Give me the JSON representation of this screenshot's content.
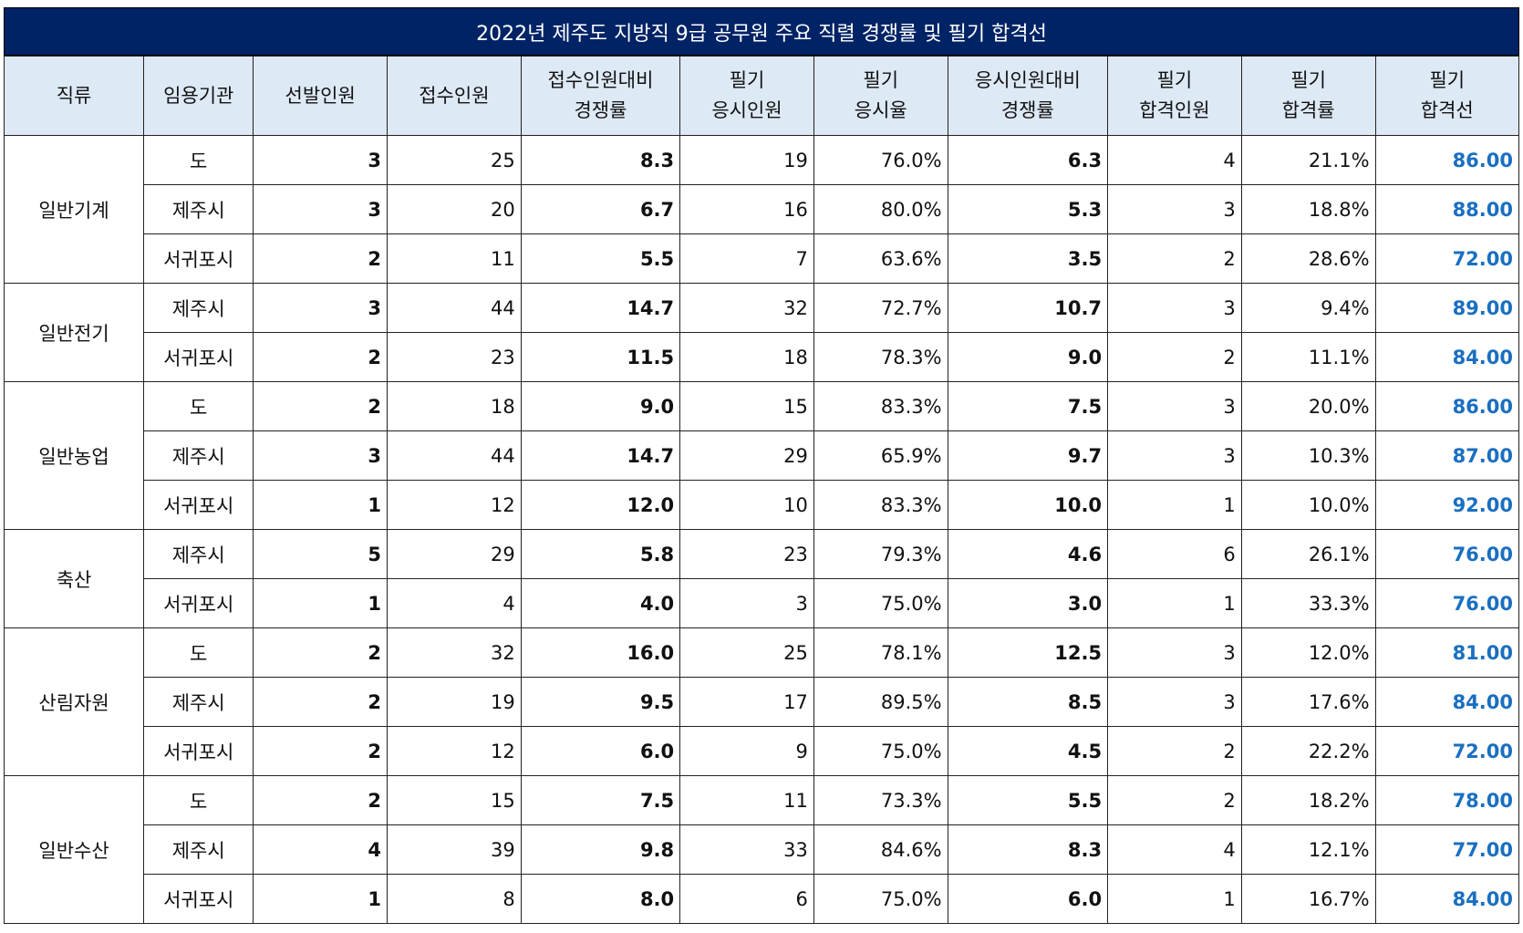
{
  "title": "2022년 제주도 지방직 9급 공무원 주요 직렬 경쟁률 및 필기 합격선",
  "headers": [
    [
      "직류"
    ],
    [
      "임용기관"
    ],
    [
      "선발인원"
    ],
    [
      "접수인원"
    ],
    [
      "접수인원대비",
      "경쟁률"
    ],
    [
      "필기",
      "응시인원"
    ],
    [
      "필기",
      "응시율"
    ],
    [
      "응시인원대비",
      "경쟁률"
    ],
    [
      "필기",
      "합격인원"
    ],
    [
      "필기",
      "합격률"
    ],
    [
      "필기",
      "합격선"
    ]
  ],
  "groups": [
    {
      "category": "일반기계",
      "rows": [
        [
          "도",
          "3",
          "25",
          "8.3",
          "19",
          "76.0%",
          "6.3",
          "4",
          "21.1%",
          "86.00"
        ],
        [
          "제주시",
          "3",
          "20",
          "6.7",
          "16",
          "80.0%",
          "5.3",
          "3",
          "18.8%",
          "88.00"
        ],
        [
          "서귀포시",
          "2",
          "11",
          "5.5",
          "7",
          "63.6%",
          "3.5",
          "2",
          "28.6%",
          "72.00"
        ]
      ]
    },
    {
      "category": "일반전기",
      "rows": [
        [
          "제주시",
          "3",
          "44",
          "14.7",
          "32",
          "72.7%",
          "10.7",
          "3",
          "9.4%",
          "89.00"
        ],
        [
          "서귀포시",
          "2",
          "23",
          "11.5",
          "18",
          "78.3%",
          "9.0",
          "2",
          "11.1%",
          "84.00"
        ]
      ]
    },
    {
      "category": "일반농업",
      "rows": [
        [
          "도",
          "2",
          "18",
          "9.0",
          "15",
          "83.3%",
          "7.5",
          "3",
          "20.0%",
          "86.00"
        ],
        [
          "제주시",
          "3",
          "44",
          "14.7",
          "29",
          "65.9%",
          "9.7",
          "3",
          "10.3%",
          "87.00"
        ],
        [
          "서귀포시",
          "1",
          "12",
          "12.0",
          "10",
          "83.3%",
          "10.0",
          "1",
          "10.0%",
          "92.00"
        ]
      ]
    },
    {
      "category": "축산",
      "rows": [
        [
          "제주시",
          "5",
          "29",
          "5.8",
          "23",
          "79.3%",
          "4.6",
          "6",
          "26.1%",
          "76.00"
        ],
        [
          "서귀포시",
          "1",
          "4",
          "4.0",
          "3",
          "75.0%",
          "3.0",
          "1",
          "33.3%",
          "76.00"
        ]
      ]
    },
    {
      "category": "산림자원",
      "rows": [
        [
          "도",
          "2",
          "32",
          "16.0",
          "25",
          "78.1%",
          "12.5",
          "3",
          "12.0%",
          "81.00"
        ],
        [
          "제주시",
          "2",
          "19",
          "9.5",
          "17",
          "89.5%",
          "8.5",
          "3",
          "17.6%",
          "84.00"
        ],
        [
          "서귀포시",
          "2",
          "12",
          "6.0",
          "9",
          "75.0%",
          "4.5",
          "2",
          "22.2%",
          "72.00"
        ]
      ]
    },
    {
      "category": "일반수산",
      "rows": [
        [
          "도",
          "2",
          "15",
          "7.5",
          "11",
          "73.3%",
          "5.5",
          "2",
          "18.2%",
          "78.00"
        ],
        [
          "제주시",
          "4",
          "39",
          "9.8",
          "33",
          "84.6%",
          "8.3",
          "4",
          "12.1%",
          "77.00"
        ],
        [
          "서귀포시",
          "1",
          "8",
          "8.0",
          "6",
          "75.0%",
          "6.0",
          "1",
          "16.7%",
          "84.00"
        ]
      ]
    }
  ]
}
